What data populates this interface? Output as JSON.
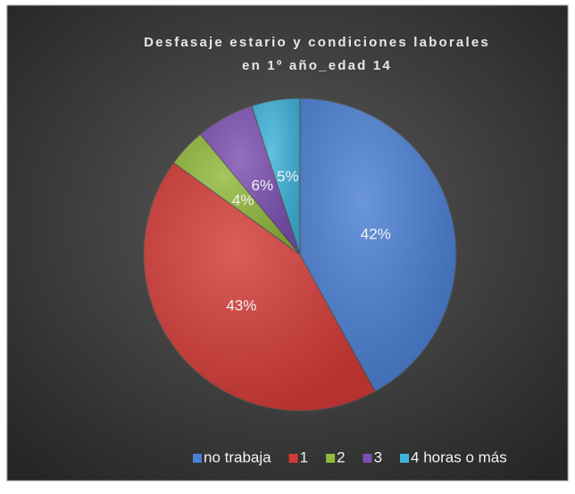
{
  "chart_data": {
    "type": "pie",
    "title": [
      "Desfasaje estario y condiciones laborales",
      "en 1º año_edad  14"
    ],
    "categories": [
      "no trabaja",
      "1",
      "2",
      "3",
      "4 horas o más"
    ],
    "values": [
      42,
      43,
      4,
      6,
      5
    ],
    "value_labels": [
      "42%",
      "43%",
      "4%",
      "6%",
      "5%"
    ],
    "colors": [
      "#4a7fd3",
      "#d43b37",
      "#92b83c",
      "#7c50b3",
      "#3fb3da"
    ],
    "legend": "bottom"
  }
}
